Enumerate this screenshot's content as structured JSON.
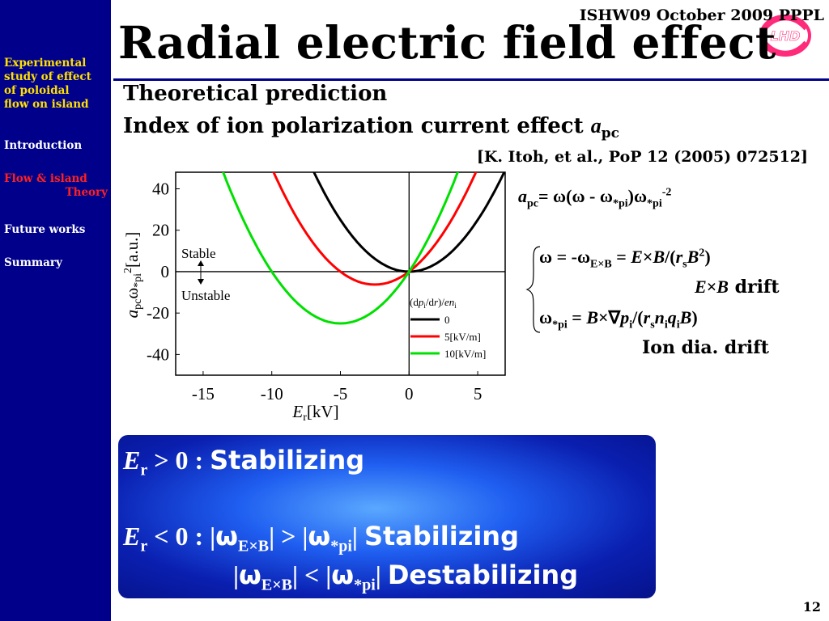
{
  "sidebar": {
    "items": [
      {
        "label": "Experimental study of effect of poloidal flow on island",
        "lines": [
          "Experimental",
          "study of effect",
          "of poloidal",
          "flow on island"
        ]
      },
      {
        "label": "Introduction"
      },
      {
        "label_line1": "Flow & island",
        "label_line2": "Theory"
      },
      {
        "label": "Future works"
      },
      {
        "label": "Summary"
      }
    ]
  },
  "header": {
    "conference": "ISHW09 October 2009 PPPL",
    "title": "Radial electric field effect",
    "logo_text": "LHD"
  },
  "content": {
    "subtitle1": "Theoretical prediction",
    "subtitle2_text": "Index of ion polarization current effect",
    "subtitle2_sym": "a",
    "subtitle2_sub": "pc",
    "reference": "[K. Itoh, et al., PoP 12 (2005) 072512]",
    "eq_apc": {
      "lhs": "a",
      "lhs_sub": "pc",
      "rhs": "= ω(ω - ω",
      "rhs_sub1": "*pi",
      "rhs_mid": ")ω",
      "rhs_sub2": "*pi",
      "rhs_sup": "-2"
    },
    "eq_omega": {
      "text1": "ω = -ω",
      "sub1": "E×B",
      "text2": " = ",
      "E": "E",
      "times": "×",
      "B": "B",
      "slash": "/(",
      "r": "r",
      "r_sub": "s",
      "B2": "B",
      "B2_sup": "2",
      "close": ")"
    },
    "drift1_E": "E",
    "drift1_times": "×",
    "drift1_B": "B",
    "drift1_label": "drift",
    "eq_omega_pi": {
      "text1": "ω",
      "sub1": "*pi",
      "text2": " = ",
      "B": "B",
      "times": "×∇",
      "p": "p",
      "p_sub": "i",
      "slash": "/(",
      "r": "r",
      "r_sub": "s",
      "n": "n",
      "n_sub": "i",
      "q": "q",
      "q_sub": "i",
      "B2": "B",
      "close": ")"
    },
    "drift2_label": "Ion dia. drift"
  },
  "chart_data": {
    "type": "line",
    "xlabel": "E",
    "xlabel_sub": "r",
    "xlabel_unit": "[kV]",
    "ylabel": "a",
    "ylabel_sub": "pc",
    "ylabel_mid": "ω",
    "ylabel_sub2": "*pi",
    "ylabel_sup": "2",
    "ylabel_unit": "[a.u.]",
    "xlim": [
      -17,
      7
    ],
    "ylim": [
      -50,
      48
    ],
    "x_ticks": [
      "-15",
      "-10",
      "-5",
      "0",
      "5"
    ],
    "x_tick_values": [
      -15,
      -10,
      -5,
      0,
      5
    ],
    "y_ticks": [
      "40",
      "20",
      "0",
      "-20",
      "-40"
    ],
    "y_tick_values": [
      40,
      20,
      0,
      -20,
      -40
    ],
    "annotations": {
      "stable": "Stable",
      "unstable": "Unstable"
    },
    "legend_title": "(dp_i/dr)/en_i",
    "legend_title_parts": [
      "(d",
      "p",
      "i",
      "/d",
      "r",
      ")/",
      "en",
      "i"
    ],
    "series": [
      {
        "name": "0",
        "color": "#000000",
        "vertex_x": 0,
        "vertex_y": 0
      },
      {
        "name": "5[kV/m]",
        "color": "#ff0000",
        "vertex_x": -2.5,
        "vertex_y": -6.25
      },
      {
        "name": "10[kV/m]",
        "color": "#00e000",
        "vertex_x": -5,
        "vertex_y": -25
      }
    ]
  },
  "box": {
    "line1": {
      "E": "E",
      "sub": "r",
      "rel": " > 0 : ",
      "word": "Stabilizing"
    },
    "line2": {
      "E": "E",
      "sub": "r",
      "rel": " < 0 : ",
      "bar1": "|",
      "w1": "ω",
      "w1_sub": "E×B",
      "bar2": "| > |",
      "w2": "ω",
      "w2_sub": "*pi",
      "bar3": "| ",
      "word": "Stabilizing"
    },
    "line3": {
      "bar1": "|",
      "w1": "ω",
      "w1_sub": "E×B",
      "bar2": "| < |",
      "w2": "ω",
      "w2_sub": "*pi",
      "bar3": "| ",
      "word": "Destabilizing"
    }
  },
  "footer": {
    "page_number": "12"
  },
  "colors": {
    "sidebar_bg": "#00008b",
    "active_nav": "#ff2020",
    "first_nav": "#ffe000",
    "curve_black": "#000000",
    "curve_red": "#ff0000",
    "curve_green": "#00e000"
  }
}
